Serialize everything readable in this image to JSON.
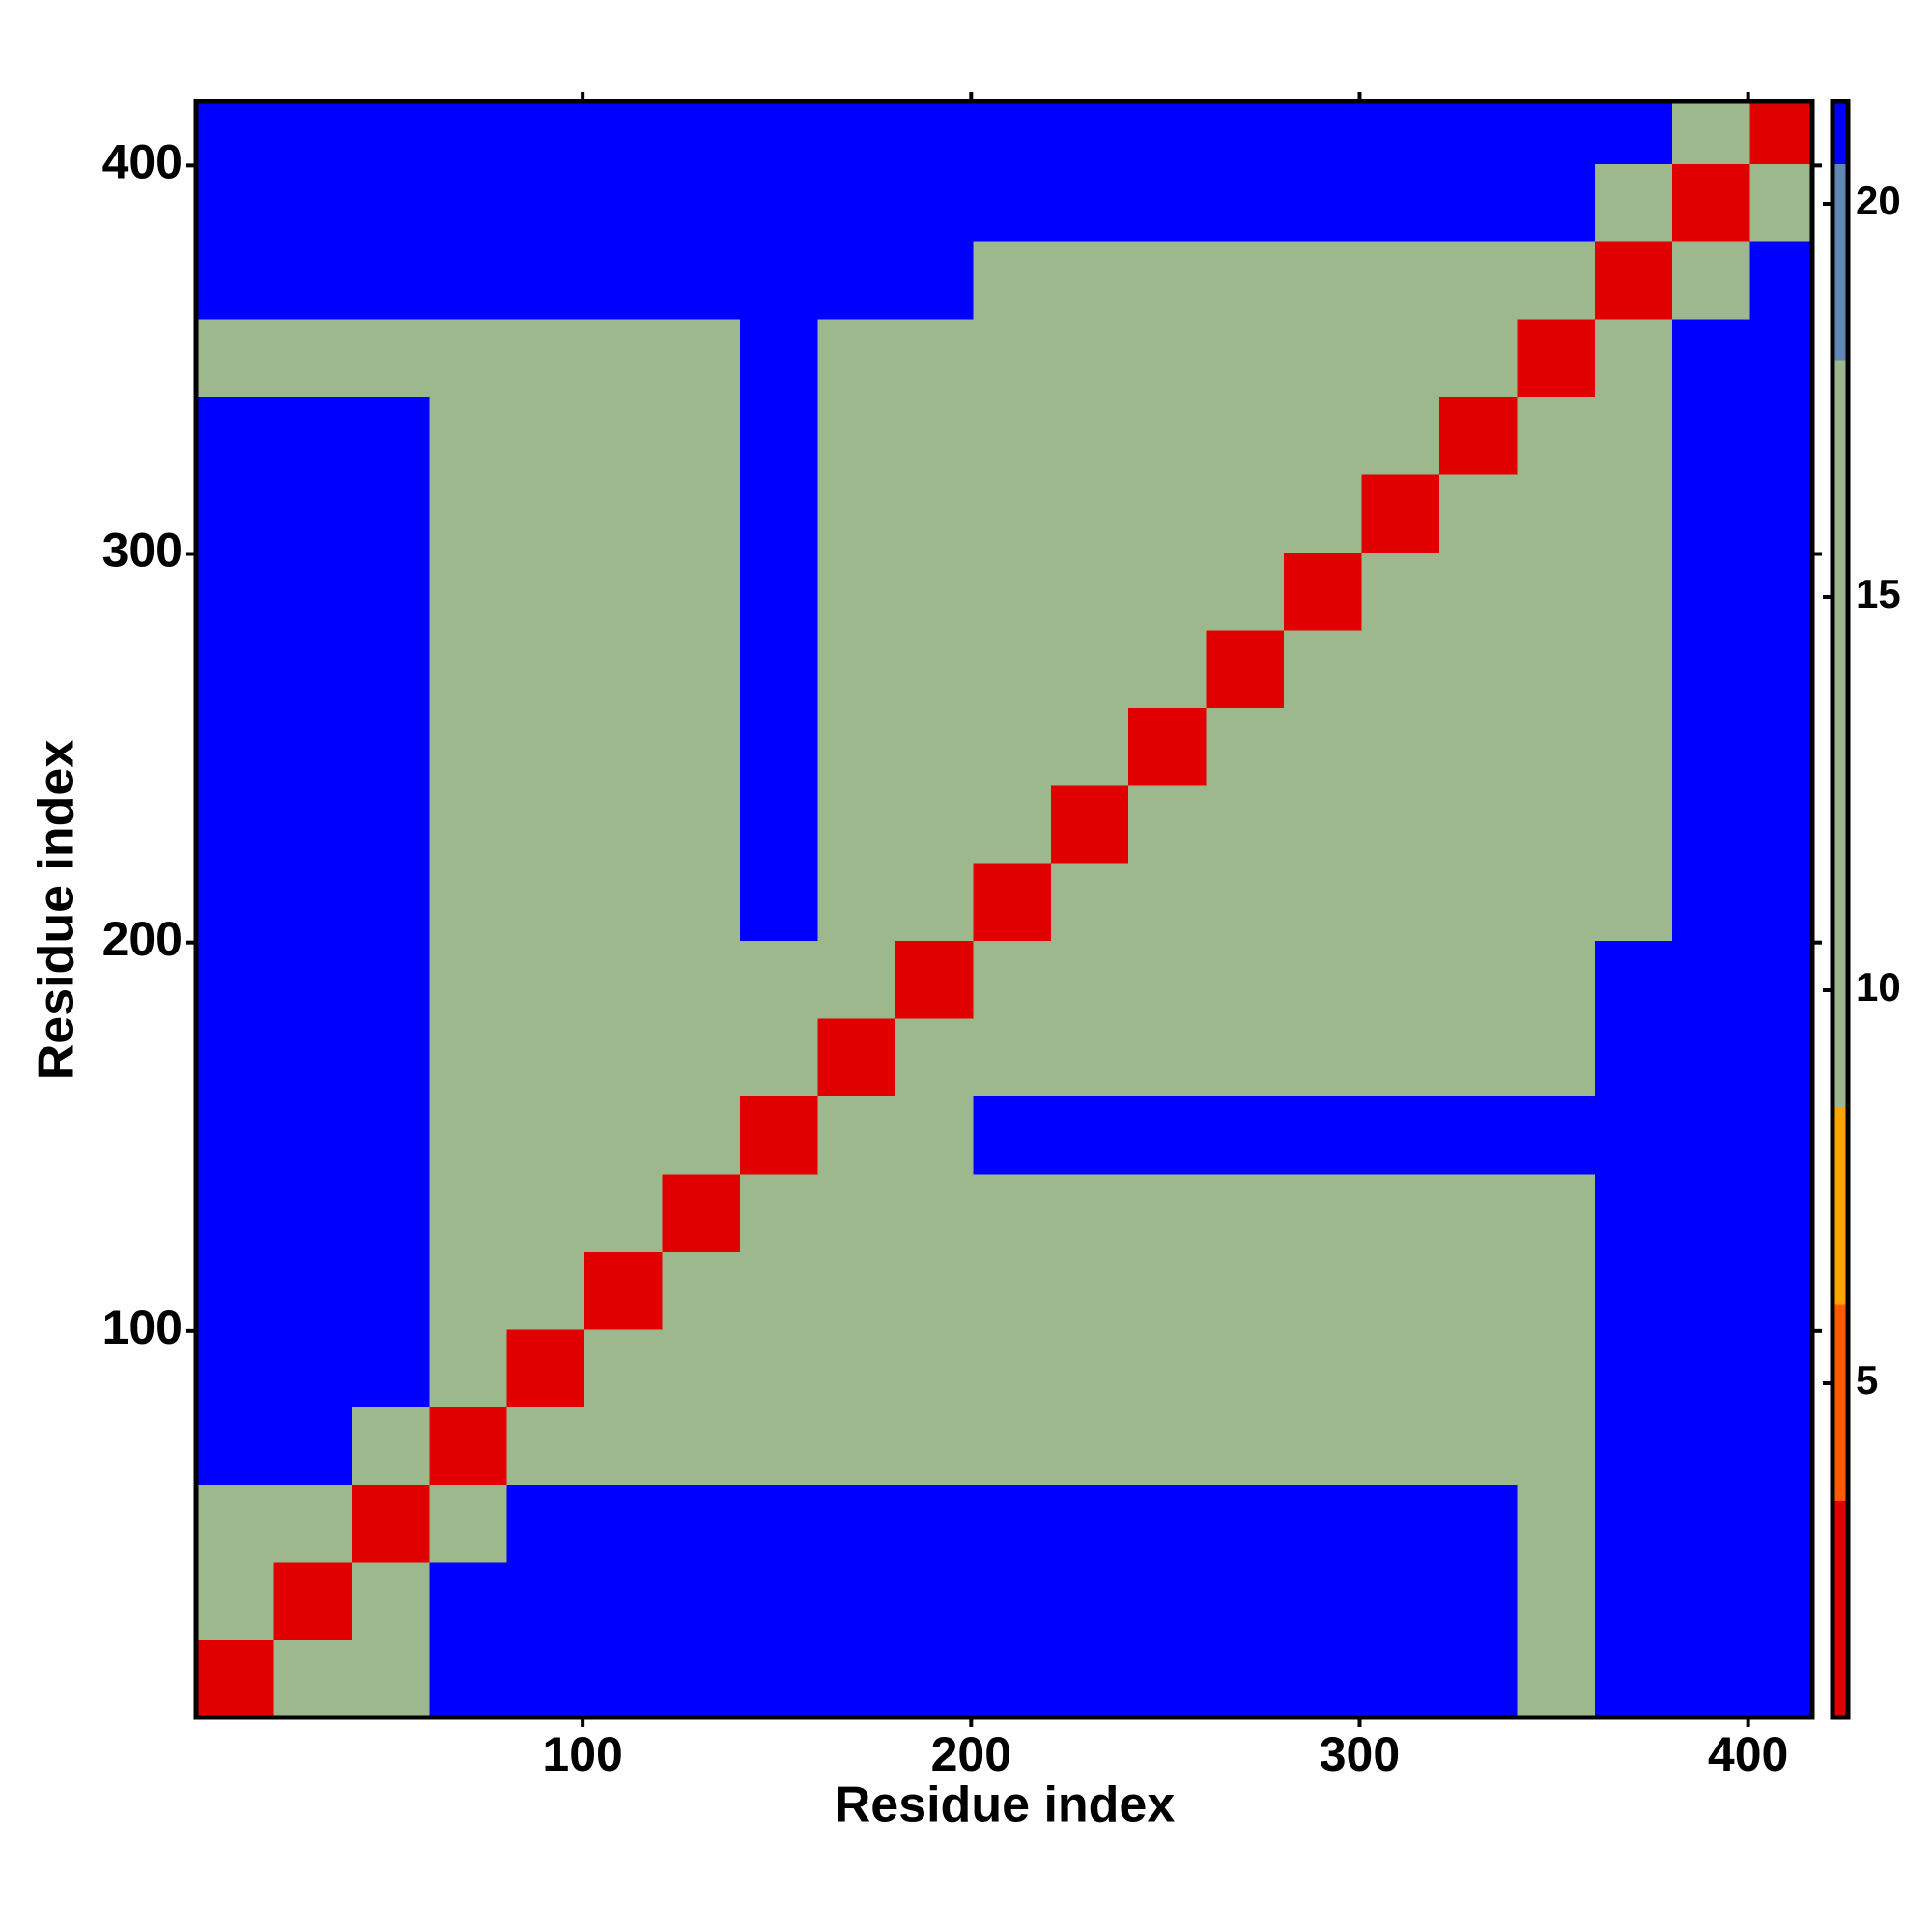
{
  "chart_data": {
    "type": "heatmap",
    "xlabel": "Residue index",
    "ylabel": "Residue index",
    "xlim": [
      0.5,
      416.5
    ],
    "ylim": [
      0.5,
      416.5
    ],
    "xticks": [
      100,
      200,
      300,
      400
    ],
    "yticks": [
      100,
      200,
      300,
      400
    ],
    "bins": [
      0.5,
      20.5,
      40.5,
      60.5,
      80.5,
      100.5,
      120.5,
      140.5,
      160.5,
      180.5,
      200.5,
      220.5,
      240.5,
      260.5,
      280.5,
      300.5,
      320.5,
      340.5,
      360.5,
      380.5,
      400.5,
      416.5
    ],
    "z": [
      [
        3,
        10,
        14,
        21,
        21,
        21,
        21,
        21,
        21,
        21,
        21,
        21,
        21,
        21,
        21,
        21,
        21,
        15,
        21,
        21,
        21
      ],
      [
        10,
        3,
        10,
        21,
        21,
        21,
        21,
        21,
        21,
        21,
        21,
        21,
        21,
        21,
        21,
        21,
        21,
        13,
        21,
        21,
        21
      ],
      [
        14,
        10,
        3,
        10,
        21,
        21,
        21,
        21,
        21,
        21,
        21,
        21,
        21,
        21,
        21,
        21,
        21,
        13,
        21,
        21,
        21
      ],
      [
        21,
        21,
        10,
        3,
        10,
        13,
        13,
        13,
        13,
        13,
        14,
        14,
        14,
        14,
        14,
        14,
        14,
        14,
        21,
        21,
        21
      ],
      [
        21,
        21,
        21,
        10,
        3,
        10,
        13,
        13,
        13,
        13,
        14,
        14,
        14,
        14,
        14,
        14,
        14,
        14,
        21,
        21,
        21
      ],
      [
        21,
        21,
        21,
        13,
        10,
        3,
        10,
        13,
        13,
        13,
        14,
        14,
        14,
        14,
        14,
        14,
        14,
        14,
        21,
        21,
        21
      ],
      [
        21,
        21,
        21,
        13,
        13,
        10,
        3,
        10,
        13,
        13,
        14,
        14,
        14,
        14,
        14,
        14,
        14,
        14,
        21,
        21,
        21
      ],
      [
        21,
        21,
        21,
        13,
        13,
        13,
        10,
        3,
        10,
        13,
        21,
        21,
        21,
        21,
        21,
        21,
        21,
        21,
        21,
        21,
        21
      ],
      [
        21,
        21,
        21,
        13,
        13,
        13,
        13,
        10,
        3,
        10,
        14,
        14,
        14,
        14,
        14,
        14,
        14,
        14,
        21,
        21,
        21
      ],
      [
        21,
        21,
        21,
        13,
        13,
        13,
        13,
        13,
        10,
        3,
        10,
        14,
        14,
        14,
        14,
        14,
        14,
        14,
        21,
        21,
        21
      ],
      [
        21,
        21,
        21,
        14,
        14,
        14,
        14,
        21,
        14,
        10,
        3,
        10,
        13,
        13,
        13,
        13,
        13,
        13,
        13,
        21,
        21
      ],
      [
        21,
        21,
        21,
        14,
        14,
        14,
        14,
        21,
        14,
        14,
        10,
        3,
        10,
        13,
        13,
        13,
        13,
        13,
        13,
        21,
        21
      ],
      [
        21,
        21,
        21,
        14,
        14,
        14,
        14,
        21,
        14,
        14,
        13,
        10,
        3,
        10,
        13,
        13,
        13,
        13,
        13,
        21,
        21
      ],
      [
        21,
        21,
        21,
        14,
        14,
        14,
        14,
        21,
        14,
        14,
        13,
        13,
        10,
        3,
        10,
        13,
        13,
        13,
        13,
        21,
        21
      ],
      [
        21,
        21,
        21,
        14,
        14,
        14,
        14,
        21,
        14,
        14,
        13,
        13,
        13,
        10,
        3,
        10,
        13,
        13,
        13,
        21,
        21
      ],
      [
        21,
        21,
        21,
        14,
        14,
        14,
        14,
        21,
        14,
        14,
        13,
        13,
        13,
        13,
        10,
        3,
        10,
        13,
        13,
        21,
        21
      ],
      [
        21,
        21,
        21,
        14,
        14,
        14,
        14,
        21,
        14,
        14,
        13,
        13,
        13,
        13,
        13,
        10,
        3,
        10,
        13,
        21,
        21
      ],
      [
        15,
        13,
        13,
        14,
        14,
        14,
        14,
        21,
        14,
        14,
        13,
        13,
        13,
        13,
        13,
        13,
        10,
        3,
        10,
        21,
        21
      ],
      [
        21,
        21,
        21,
        21,
        21,
        21,
        21,
        21,
        21,
        21,
        13,
        13,
        13,
        13,
        13,
        13,
        13,
        10,
        3,
        10,
        21
      ],
      [
        21,
        21,
        21,
        21,
        21,
        21,
        21,
        21,
        21,
        21,
        21,
        21,
        21,
        21,
        21,
        21,
        21,
        21,
        10,
        3,
        10
      ],
      [
        21,
        21,
        21,
        21,
        21,
        21,
        21,
        21,
        21,
        21,
        21,
        21,
        21,
        21,
        21,
        21,
        21,
        21,
        21,
        10,
        3
      ]
    ],
    "clim": [
      0.75,
      21.3
    ],
    "cticks": [
      5,
      10,
      15,
      20
    ],
    "colorscale": [
      {
        "max": 3.5,
        "color": "#e00000"
      },
      {
        "max": 6,
        "color": "#ff5a00"
      },
      {
        "max": 8.5,
        "color": "#ffa500"
      },
      {
        "max": 18,
        "color": "#9db88c"
      },
      {
        "max": 20.5,
        "color": "#5f86b4"
      },
      {
        "max": 21.3,
        "color": "#0000ff"
      }
    ]
  }
}
